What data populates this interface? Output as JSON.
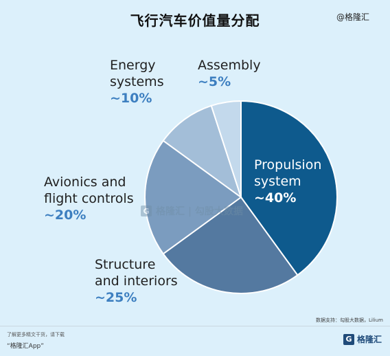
{
  "title": "飞行汽车价值量分配",
  "watermark_top_right": "@格隆汇",
  "source": "数据支持：勾股大数据，Lilium",
  "footer": {
    "line1": "了解更多精文干货，请下载",
    "line2": "“格隆汇App”",
    "logo_text": "格隆汇"
  },
  "center_watermark": "格隆汇 | 勾股大数据",
  "colors": {
    "background": "#dcf0fb",
    "label_text": "#1f1f1f",
    "label_value": "#3d7fc0"
  },
  "chart_data": {
    "type": "pie",
    "start_angle_deg": 0,
    "direction": "clockwise",
    "slices": [
      {
        "label_lines": [
          "Propulsion",
          "system"
        ],
        "value_text": "~40%",
        "value": 40,
        "color": "#0e5a8d",
        "label_inside": true
      },
      {
        "label_lines": [
          "Structure",
          "and interiors"
        ],
        "value_text": "~25%",
        "value": 25,
        "color": "#5479a0",
        "label_inside": false
      },
      {
        "label_lines": [
          "Avionics and",
          "flight controls"
        ],
        "value_text": "~20%",
        "value": 20,
        "color": "#7b9cbf",
        "label_inside": false
      },
      {
        "label_lines": [
          "Energy",
          "systems"
        ],
        "value_text": "~10%",
        "value": 10,
        "color": "#a3bed8",
        "label_inside": false
      },
      {
        "label_lines": [
          "Assembly"
        ],
        "value_text": "~5%",
        "value": 5,
        "color": "#c3d9ec",
        "label_inside": false
      }
    ]
  }
}
